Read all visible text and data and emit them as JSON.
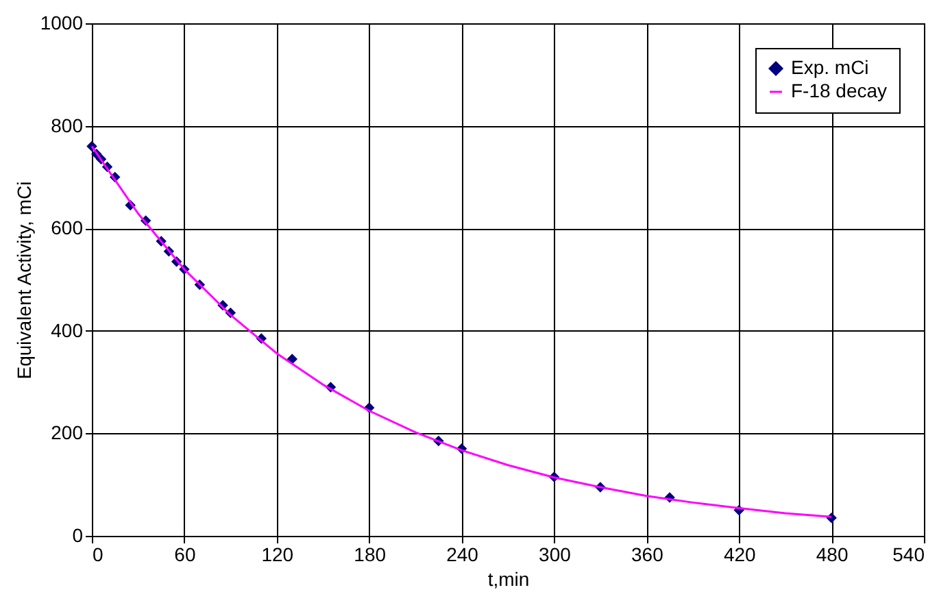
{
  "chart_data": {
    "type": "scatter",
    "xlabel": "t,min",
    "ylabel": "Equivalent Activity, mCi",
    "xlim": [
      0,
      540
    ],
    "xticks": [
      0,
      60,
      120,
      180,
      240,
      300,
      360,
      420,
      480,
      540
    ],
    "ylim": [
      0,
      1000
    ],
    "yticks": [
      0,
      200,
      400,
      600,
      800,
      1000
    ],
    "grid": true,
    "legend": "top right",
    "series": [
      {
        "name": "Exp. mCi",
        "color": "#000080",
        "marker": "diamond",
        "x": [
          0,
          3,
          6,
          10,
          15,
          25,
          35,
          45,
          50,
          55,
          60,
          70,
          85,
          90,
          110,
          130,
          155,
          180,
          225,
          240,
          300,
          330,
          375,
          420,
          480
        ],
        "values": [
          760,
          745,
          735,
          720,
          700,
          645,
          615,
          575,
          555,
          535,
          520,
          490,
          450,
          435,
          385,
          345,
          290,
          250,
          185,
          170,
          115,
          95,
          75,
          50,
          35
        ]
      },
      {
        "name": "F-18 decay",
        "type": "line",
        "color": "#ff00ff",
        "marker": "none",
        "line_style": "solid",
        "x": [
          0,
          30,
          60,
          90,
          120,
          150,
          180,
          210,
          240,
          270,
          300,
          330,
          360,
          390,
          420,
          450,
          480
        ],
        "values": [
          760,
          629,
          520,
          431,
          356,
          295,
          244,
          202,
          167,
          138,
          114,
          95,
          78,
          65,
          54,
          44,
          37
        ]
      }
    ]
  }
}
